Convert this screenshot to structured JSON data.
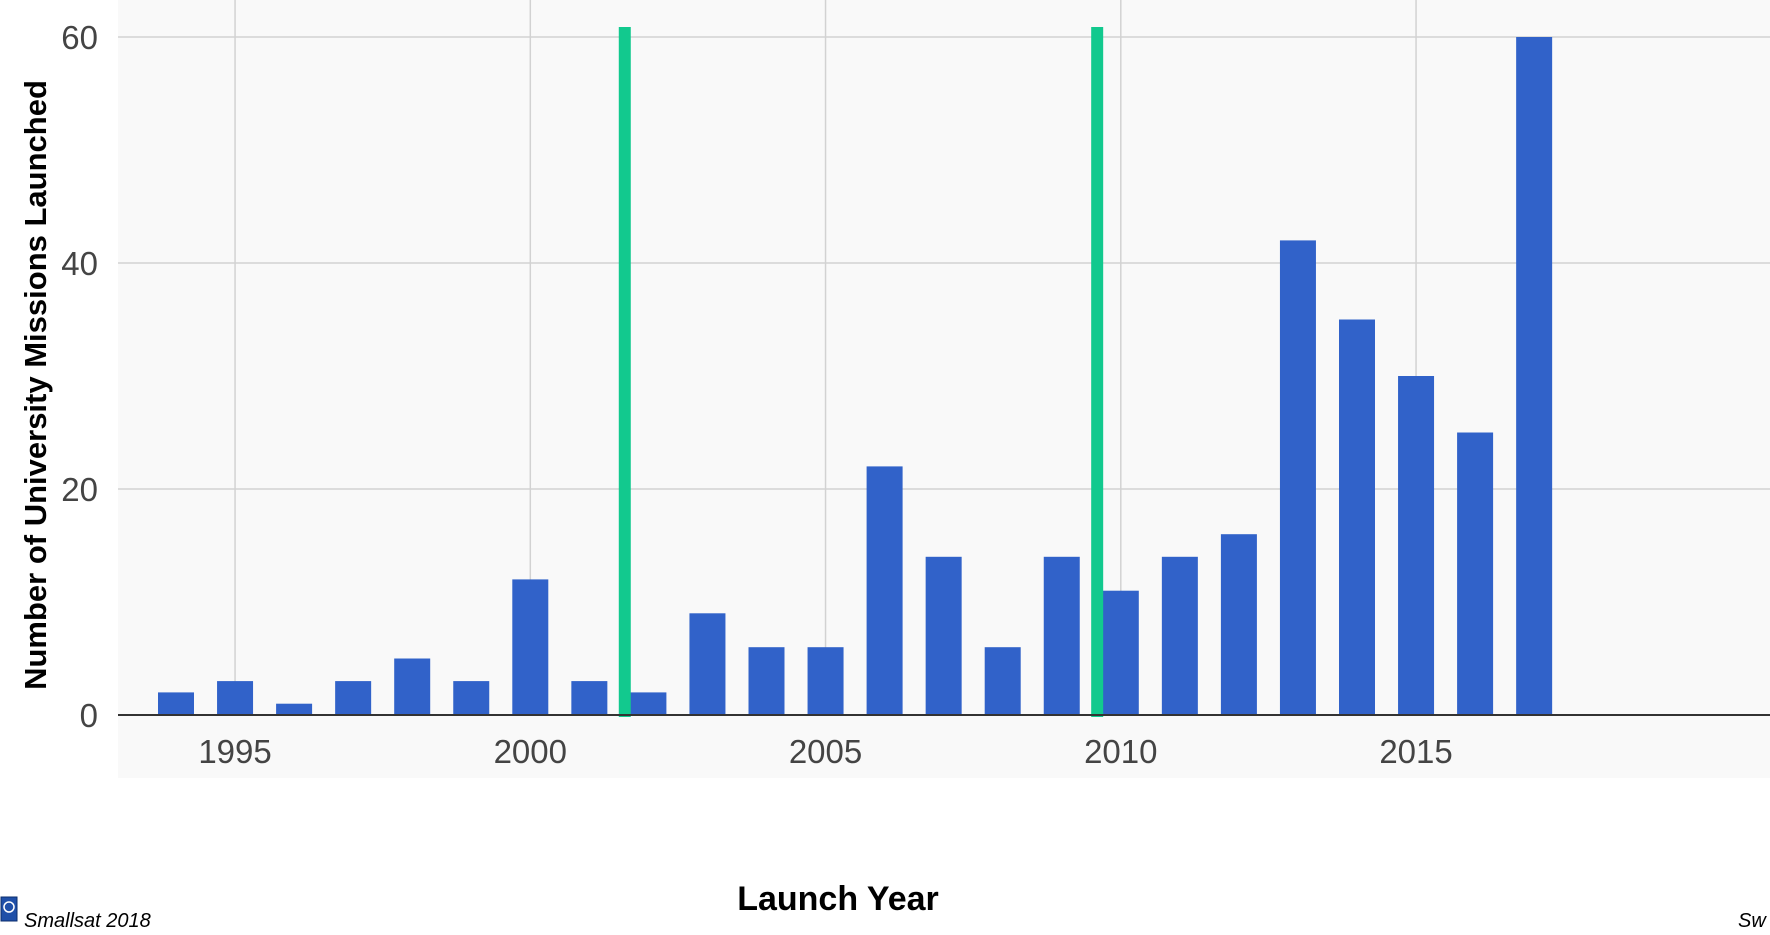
{
  "chart_data": {
    "type": "bar",
    "title": "",
    "xlabel": "Launch Year",
    "ylabel": "Number of University Missions Launched",
    "categories": [
      1994,
      1995,
      1996,
      1997,
      1998,
      1999,
      2000,
      2001,
      2002,
      2003,
      2004,
      2005,
      2006,
      2007,
      2008,
      2009,
      2010,
      2011,
      2012,
      2013,
      2014,
      2015,
      2016,
      2017
    ],
    "values": [
      2,
      3,
      1,
      3,
      5,
      3,
      12,
      3,
      2,
      9,
      6,
      6,
      22,
      14,
      6,
      14,
      11,
      14,
      16,
      42,
      35,
      30,
      25,
      60
    ],
    "x_ticks": [
      "1995",
      "2000",
      "2005",
      "2010",
      "2015"
    ],
    "y_ticks": [
      "0",
      "20",
      "40",
      "60"
    ],
    "ylim": [
      0,
      60
    ],
    "grid": true,
    "bar_color": "#3162c9",
    "vertical_markers": [
      {
        "x": 2001.6,
        "color": "#12c98e"
      },
      {
        "x": 2009.6,
        "color": "#12c98e"
      }
    ]
  },
  "footer": {
    "left": "Smallsat 2018",
    "right": "Sw",
    "logo_icon": "university-seal-icon"
  }
}
